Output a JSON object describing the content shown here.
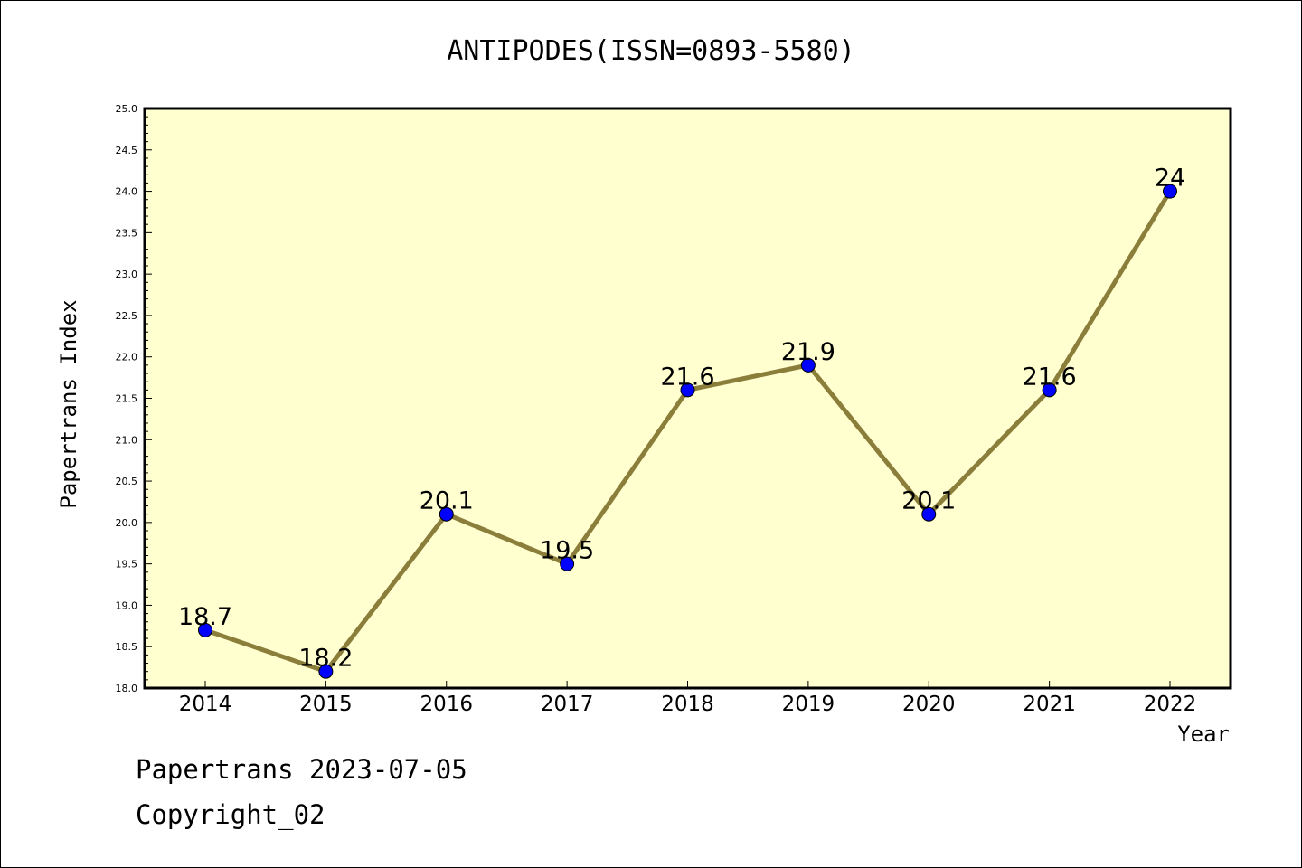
{
  "chart_data": {
    "type": "line",
    "title": "ANTIPODES(ISSN=0893-5580)",
    "xlabel": "Year",
    "ylabel": "Papertrans Index",
    "categories": [
      "2014",
      "2015",
      "2016",
      "2017",
      "2018",
      "2019",
      "2020",
      "2021",
      "2022"
    ],
    "series": [
      {
        "values": [
          18.7,
          18.2,
          20.1,
          19.5,
          21.6,
          21.9,
          20.1,
          21.6,
          24.0
        ]
      }
    ],
    "data_labels": [
      "18.7",
      "18.2",
      "20.1",
      "19.5",
      "21.6",
      "21.9",
      "20.1",
      "21.6",
      "24"
    ],
    "ylim": [
      18.0,
      25.0
    ],
    "ytick_labels": [
      "18.0",
      "18.5",
      "19.0",
      "19.5",
      "20.0",
      "20.5",
      "21.0",
      "21.5",
      "22.0",
      "22.5",
      "23.0",
      "23.5",
      "24.0",
      "24.5",
      "25.0"
    ],
    "grid": false,
    "colors": {
      "plot_background": "#ffffd0",
      "line": "#8b7d3a",
      "marker": "#0000ff"
    }
  },
  "footer": {
    "line1": "Papertrans 2023-07-05",
    "line2": "Copyright_02"
  }
}
